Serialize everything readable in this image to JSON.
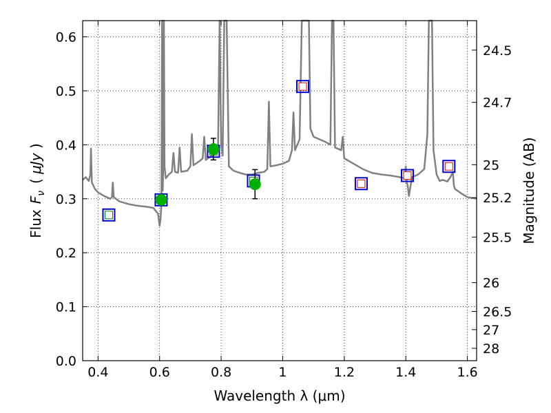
{
  "chart_data": {
    "type": "scatter",
    "title": "",
    "xlabel": "Wavelength  λ (μm)",
    "ylabel": "Flux  F_ν  ( μJy )",
    "ylabel_parts": {
      "prefix": "Flux",
      "symbol": "F",
      "subscript": "ν",
      "unit": "μJy"
    },
    "y2label": "Magnitude (AB)",
    "xlim": [
      0.35,
      1.63
    ],
    "ylim": [
      0.0,
      0.63
    ],
    "grid": true,
    "colors": {
      "spectrum": "#808080",
      "model_box": "#0000cc",
      "inner_red": "#cc0000",
      "inner_green": "#008000",
      "observed": "#00b000",
      "errorbar": "#000000"
    },
    "x_ticks": [
      {
        "value": 0.4,
        "label": "0.4"
      },
      {
        "value": 0.6,
        "label": "0.6"
      },
      {
        "value": 0.8,
        "label": "0.8"
      },
      {
        "value": 1.0,
        "label": "1"
      },
      {
        "value": 1.2,
        "label": "1.2"
      },
      {
        "value": 1.4,
        "label": "1.4"
      },
      {
        "value": 1.6,
        "label": "1.6"
      }
    ],
    "y_ticks": [
      {
        "value": 0.0,
        "label": "0.0"
      },
      {
        "value": 0.1,
        "label": "0.1"
      },
      {
        "value": 0.2,
        "label": "0.2"
      },
      {
        "value": 0.3,
        "label": "0.3"
      },
      {
        "value": 0.4,
        "label": "0.4"
      },
      {
        "value": 0.5,
        "label": "0.5"
      },
      {
        "value": 0.6,
        "label": "0.6"
      }
    ],
    "y2_ticks": [
      {
        "mag": 24.5,
        "label": "24.5"
      },
      {
        "mag": 24.7,
        "label": "24.7"
      },
      {
        "mag": 25.0,
        "label": "25"
      },
      {
        "mag": 25.2,
        "label": "25.2"
      },
      {
        "mag": 25.5,
        "label": "25.5"
      },
      {
        "mag": 26.0,
        "label": "26"
      },
      {
        "mag": 26.5,
        "label": "26.5"
      },
      {
        "mag": 27.0,
        "label": "27"
      },
      {
        "mag": 28.0,
        "label": "28"
      }
    ],
    "model_photometry": [
      {
        "x": 0.435,
        "y": 0.27,
        "inner": "green"
      },
      {
        "x": 0.605,
        "y": 0.298,
        "inner": "green"
      },
      {
        "x": 0.775,
        "y": 0.388,
        "inner": "green"
      },
      {
        "x": 0.905,
        "y": 0.333,
        "inner": "green"
      },
      {
        "x": 1.065,
        "y": 0.508,
        "inner": "red"
      },
      {
        "x": 1.255,
        "y": 0.328,
        "inner": "red"
      },
      {
        "x": 1.405,
        "y": 0.343,
        "inner": "red"
      },
      {
        "x": 1.54,
        "y": 0.36,
        "inner": "red"
      }
    ],
    "observed": [
      {
        "x": 0.605,
        "y": 0.298,
        "err": 0.0
      },
      {
        "x": 0.775,
        "y": 0.392,
        "err": 0.02
      },
      {
        "x": 0.91,
        "y": 0.327,
        "err": 0.027
      }
    ],
    "spectrum": [
      [
        0.35,
        0.335
      ],
      [
        0.36,
        0.34
      ],
      [
        0.37,
        0.333
      ],
      [
        0.375,
        0.345
      ],
      [
        0.377,
        0.393
      ],
      [
        0.38,
        0.33
      ],
      [
        0.39,
        0.318
      ],
      [
        0.4,
        0.312
      ],
      [
        0.42,
        0.305
      ],
      [
        0.44,
        0.3
      ],
      [
        0.445,
        0.303
      ],
      [
        0.448,
        0.33
      ],
      [
        0.451,
        0.303
      ],
      [
        0.47,
        0.295
      ],
      [
        0.5,
        0.29
      ],
      [
        0.53,
        0.287
      ],
      [
        0.56,
        0.285
      ],
      [
        0.58,
        0.283
      ],
      [
        0.595,
        0.272
      ],
      [
        0.6,
        0.25
      ],
      [
        0.603,
        0.262
      ],
      [
        0.606,
        0.29
      ],
      [
        0.608,
        0.63
      ],
      [
        0.61,
        0.315
      ],
      [
        0.612,
        0.36
      ],
      [
        0.614,
        0.63
      ],
      [
        0.616,
        0.36
      ],
      [
        0.62,
        0.338
      ],
      [
        0.63,
        0.345
      ],
      [
        0.64,
        0.35
      ],
      [
        0.645,
        0.385
      ],
      [
        0.65,
        0.35
      ],
      [
        0.66,
        0.348
      ],
      [
        0.665,
        0.395
      ],
      [
        0.67,
        0.35
      ],
      [
        0.69,
        0.352
      ],
      [
        0.7,
        0.36
      ],
      [
        0.705,
        0.42
      ],
      [
        0.71,
        0.362
      ],
      [
        0.73,
        0.37
      ],
      [
        0.74,
        0.375
      ],
      [
        0.745,
        0.415
      ],
      [
        0.75,
        0.372
      ],
      [
        0.77,
        0.38
      ],
      [
        0.78,
        0.395
      ],
      [
        0.79,
        0.398
      ],
      [
        0.795,
        0.63
      ],
      [
        0.8,
        0.4
      ],
      [
        0.805,
        0.38
      ],
      [
        0.81,
        0.63
      ],
      [
        0.818,
        0.63
      ],
      [
        0.825,
        0.36
      ],
      [
        0.84,
        0.352
      ],
      [
        0.86,
        0.348
      ],
      [
        0.88,
        0.345
      ],
      [
        0.9,
        0.345
      ],
      [
        0.92,
        0.348
      ],
      [
        0.94,
        0.35
      ],
      [
        0.95,
        0.355
      ],
      [
        0.955,
        0.48
      ],
      [
        0.96,
        0.36
      ],
      [
        0.98,
        0.362
      ],
      [
        1.0,
        0.365
      ],
      [
        1.02,
        0.37
      ],
      [
        1.03,
        0.39
      ],
      [
        1.035,
        0.46
      ],
      [
        1.04,
        0.39
      ],
      [
        1.055,
        0.41
      ],
      [
        1.062,
        0.63
      ],
      [
        1.085,
        0.63
      ],
      [
        1.09,
        0.43
      ],
      [
        1.1,
        0.415
      ],
      [
        1.12,
        0.41
      ],
      [
        1.14,
        0.405
      ],
      [
        1.155,
        0.4
      ],
      [
        1.16,
        0.63
      ],
      [
        1.165,
        0.63
      ],
      [
        1.17,
        0.395
      ],
      [
        1.19,
        0.39
      ],
      [
        1.195,
        0.415
      ],
      [
        1.2,
        0.375
      ],
      [
        1.23,
        0.365
      ],
      [
        1.26,
        0.355
      ],
      [
        1.29,
        0.348
      ],
      [
        1.32,
        0.345
      ],
      [
        1.35,
        0.343
      ],
      [
        1.38,
        0.34
      ],
      [
        1.395,
        0.338
      ],
      [
        1.4,
        0.36
      ],
      [
        1.403,
        0.33
      ],
      [
        1.406,
        0.325
      ],
      [
        1.41,
        0.305
      ],
      [
        1.42,
        0.34
      ],
      [
        1.44,
        0.345
      ],
      [
        1.46,
        0.355
      ],
      [
        1.47,
        0.42
      ],
      [
        1.475,
        0.63
      ],
      [
        1.485,
        0.63
      ],
      [
        1.49,
        0.39
      ],
      [
        1.5,
        0.345
      ],
      [
        1.51,
        0.333
      ],
      [
        1.52,
        0.335
      ],
      [
        1.535,
        0.332
      ],
      [
        1.545,
        0.34
      ],
      [
        1.553,
        0.35
      ],
      [
        1.556,
        0.325
      ],
      [
        1.56,
        0.318
      ],
      [
        1.58,
        0.31
      ],
      [
        1.6,
        0.303
      ],
      [
        1.63,
        0.3
      ]
    ]
  }
}
